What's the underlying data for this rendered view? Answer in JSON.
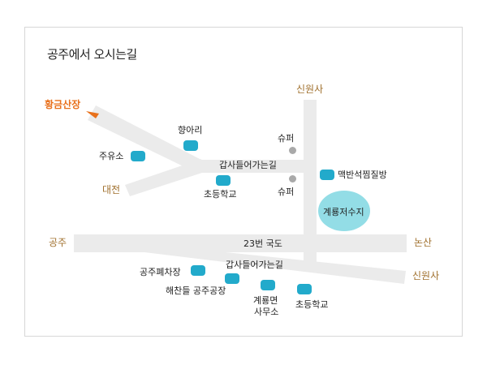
{
  "title": "공주에서 오시는길",
  "map": {
    "places": {
      "hwanggeum_sanjang": "황금산장",
      "daejeon": "대전",
      "gongju": "공주",
      "nonsan": "논산",
      "sinwonsa_top": "신원사",
      "sinwonsa_right": "신원사"
    },
    "road_labels": {
      "route23": "23번 국도",
      "gapsa_upper": "갑사들어가는길",
      "gapsa_lower": "갑사들어가는길"
    },
    "landmarks": {
      "hyangari": "향아리",
      "juyuso": "주유소",
      "chodeung_upper": "초등학교",
      "super_top": "슈퍼",
      "super_bottom": "슈퍼",
      "maekban": "맥반석찜질방",
      "reservoir": "계룡저수지",
      "gongju_scrapyard": "공주폐차장",
      "haechandeul": "해찬들 공주공장",
      "office_line1": "계룡면",
      "office_line2": "사무소",
      "chodeung_lower": "초등학교"
    },
    "colors": {
      "road": "#ebebeb",
      "marker": "#22aacb",
      "reservoir": "#93dde6",
      "place_label": "#a0702d",
      "highlight": "#e8701b"
    }
  }
}
